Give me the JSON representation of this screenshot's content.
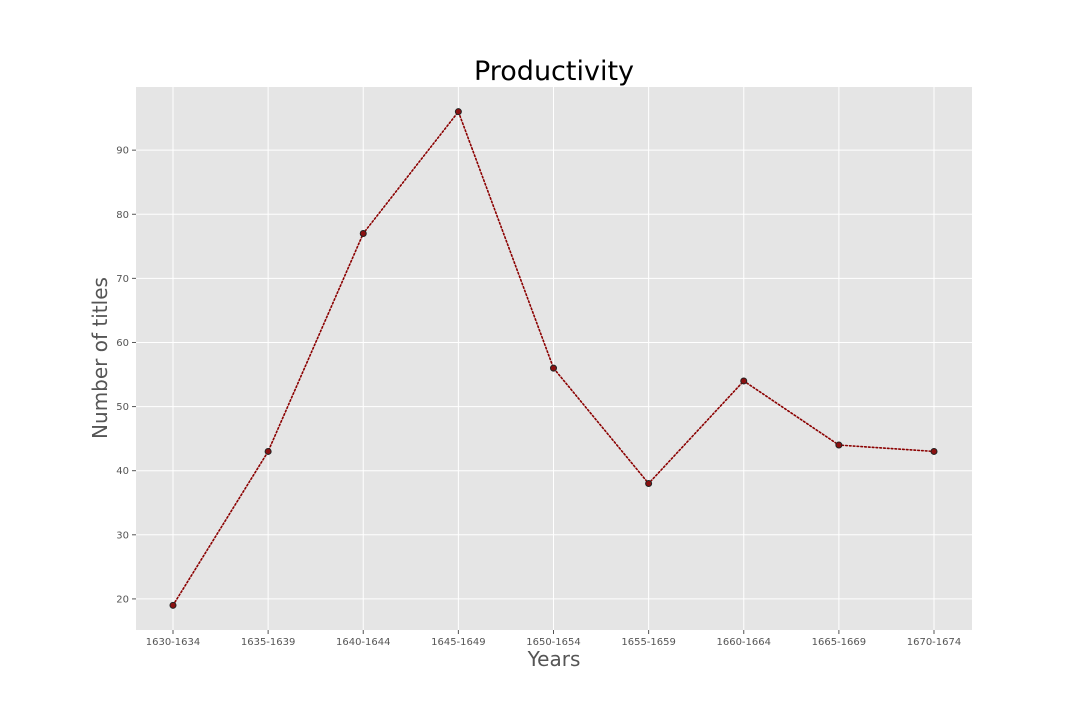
{
  "chart_data": {
    "type": "line",
    "title": "Productivity",
    "xlabel": "Years",
    "ylabel": "Number of titles",
    "categories": [
      "1630-1634",
      "1635-1639",
      "1640-1644",
      "1645-1649",
      "1650-1654",
      "1655-1659",
      "1660-1664",
      "1665-1669",
      "1670-1674"
    ],
    "series": [
      {
        "values": [
          19,
          43,
          77,
          96,
          56,
          38,
          54,
          44,
          43
        ]
      }
    ],
    "yticks": [
      20,
      30,
      40,
      50,
      60,
      70,
      80,
      90
    ],
    "ylim": [
      15.15,
      99.85
    ],
    "grid": true,
    "legend": "none",
    "line_style": "dotted",
    "colors": {
      "plot_background": "#e5e5e5",
      "grid": "#ffffff",
      "line": "#8b0000",
      "marker_fill": "#8b1010",
      "marker_edge": "#222222",
      "tick_text": "#555555",
      "title_text": "#000000"
    }
  }
}
